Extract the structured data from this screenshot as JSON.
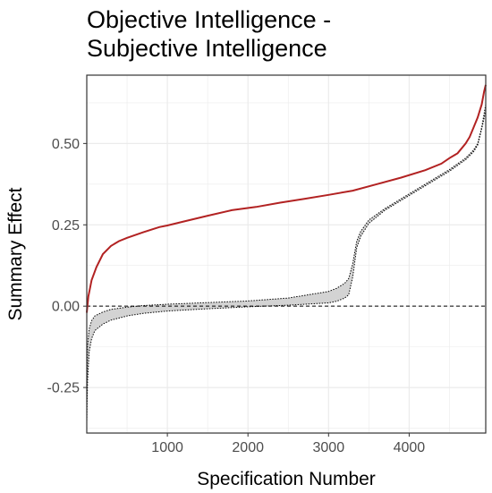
{
  "chart_data": {
    "type": "line",
    "title": "Objective Intelligence  -\nSubjective Intelligence",
    "xlabel": "Specification Number",
    "ylabel": "Summary Effect",
    "xlim": [
      0,
      4950
    ],
    "ylim": [
      -0.39,
      0.71
    ],
    "x_ticks": [
      1000,
      2000,
      3000,
      4000
    ],
    "x_tick_labels": [
      "1000",
      "2000",
      "3000",
      "4000"
    ],
    "y_ticks": [
      -0.25,
      0.0,
      0.25,
      0.5
    ],
    "y_tick_labels": [
      "-0.25",
      "0.00",
      "0.25",
      "0.50"
    ],
    "grid": true,
    "reference_line": 0.0,
    "colors": {
      "summary": "#b22222",
      "null_band": "#d3d3d3",
      "null_bound": "#000000",
      "panel_border": "#333333",
      "grid": "#ebebeb"
    },
    "series": [
      {
        "style": "solid",
        "x": [
          0,
          20,
          60,
          120,
          200,
          300,
          400,
          500,
          700,
          900,
          1000,
          1200,
          1500,
          1800,
          2100,
          2400,
          2700,
          3000,
          3300,
          3600,
          3900,
          4200,
          4400,
          4500,
          4600,
          4700,
          4750,
          4800,
          4850,
          4900,
          4930,
          4950
        ],
        "y": [
          -0.02,
          0.03,
          0.08,
          0.12,
          0.16,
          0.185,
          0.2,
          0.21,
          0.227,
          0.243,
          0.248,
          0.26,
          0.278,
          0.295,
          0.305,
          0.318,
          0.33,
          0.342,
          0.355,
          0.375,
          0.395,
          0.418,
          0.438,
          0.455,
          0.47,
          0.5,
          0.52,
          0.55,
          0.58,
          0.62,
          0.66,
          0.68
        ]
      }
    ],
    "null_band": {
      "x": [
        0,
        10,
        30,
        60,
        100,
        200,
        300,
        500,
        700,
        1000,
        1500,
        2000,
        2500,
        3000,
        3100,
        3200,
        3250,
        3300,
        3350,
        3400,
        3500,
        3700,
        4000,
        4300,
        4500,
        4700,
        4800,
        4850,
        4900,
        4950
      ],
      "upper": [
        -0.3,
        -0.12,
        -0.07,
        -0.045,
        -0.03,
        -0.018,
        -0.01,
        -0.003,
        0.002,
        0.006,
        0.011,
        0.016,
        0.025,
        0.045,
        0.055,
        0.07,
        0.085,
        0.13,
        0.2,
        0.23,
        0.265,
        0.3,
        0.345,
        0.39,
        0.42,
        0.455,
        0.48,
        0.5,
        0.55,
        0.62
      ],
      "lower": [
        -0.36,
        -0.23,
        -0.14,
        -0.1,
        -0.075,
        -0.055,
        -0.043,
        -0.03,
        -0.022,
        -0.015,
        -0.008,
        -0.002,
        0.003,
        0.01,
        0.015,
        0.025,
        0.035,
        0.09,
        0.18,
        0.215,
        0.255,
        0.295,
        0.34,
        0.385,
        0.415,
        0.45,
        0.475,
        0.495,
        0.545,
        0.6
      ]
    }
  }
}
